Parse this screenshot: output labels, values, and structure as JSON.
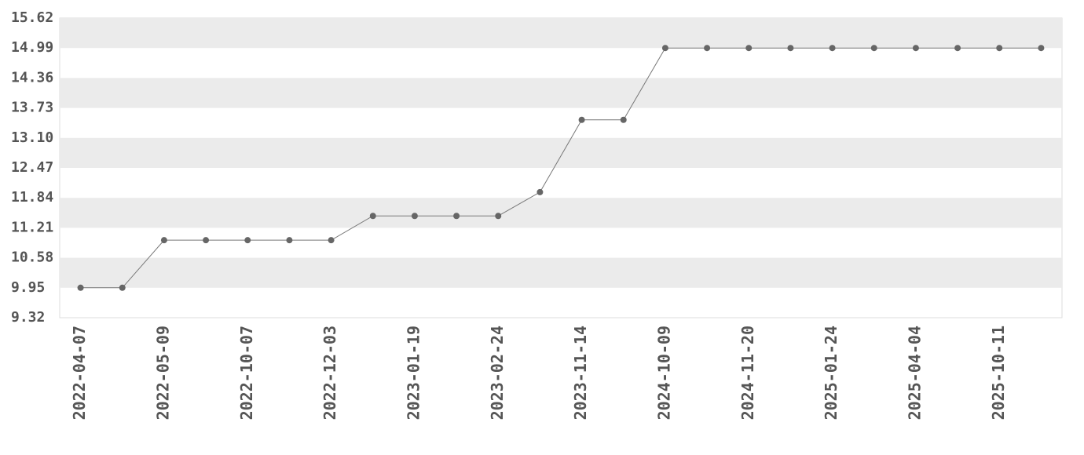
{
  "chart_data": {
    "type": "line",
    "categories": [
      "2022-04-07",
      null,
      "2022-05-09",
      null,
      "2022-10-07",
      null,
      "2022-12-03",
      null,
      "2023-01-19",
      null,
      "2023-02-24",
      null,
      "2023-11-14",
      null,
      "2024-10-09",
      null,
      "2024-11-20",
      null,
      "2025-01-24",
      null,
      "2025-04-04",
      null,
      "2025-10-11",
      null
    ],
    "values": [
      9.95,
      9.95,
      10.95,
      10.95,
      10.95,
      10.95,
      10.95,
      11.46,
      11.46,
      11.46,
      11.46,
      11.96,
      13.48,
      13.48,
      14.99,
      14.99,
      14.99,
      14.99,
      14.99,
      14.99,
      14.99,
      14.99,
      14.99,
      14.99
    ],
    "color": "#777777",
    "ylim": [
      9.32,
      15.62
    ],
    "yticks": [
      9.32,
      9.95,
      10.58,
      11.21,
      11.84,
      12.47,
      {
        "value": 13.1,
        "label": "13.10"
      },
      13.73,
      14.36,
      14.99,
      15.62
    ],
    "bands": true
  }
}
